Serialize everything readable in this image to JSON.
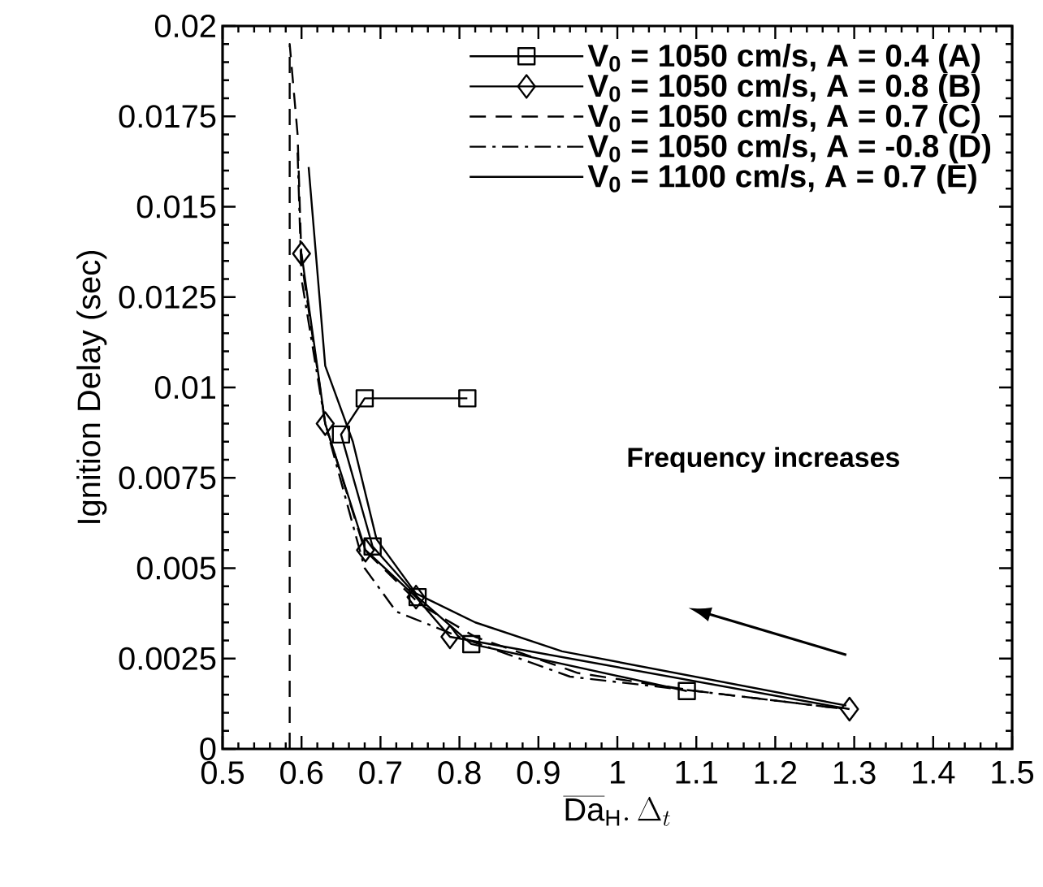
{
  "chart_data": {
    "type": "line",
    "xlabel": "\\overline{\\mathrm{Da}}_{\\mathrm{H}}.\\,\\Delta_{t}",
    "ylabel": "Ignition Delay (sec)",
    "annotations": [
      "Frequency increases"
    ],
    "xlim": [
      0.5,
      1.5
    ],
    "xticks": [
      0.5,
      0.6,
      0.7,
      0.8,
      0.9,
      1,
      1.1,
      1.2,
      1.3,
      1.4,
      1.5
    ],
    "ylim": [
      0,
      0.02
    ],
    "yticks": [
      0,
      0.0025,
      0.005,
      0.0075,
      0.01,
      0.0125,
      0.015,
      0.0175,
      0.02
    ],
    "grid": false,
    "legend": "top right",
    "series": [
      {
        "name": "V$_{0}$ = 1050 cm/s, A = 0.4 (A)",
        "color": "#000000",
        "marker": "square",
        "line_style": "solid",
        "x": [
          0.81,
          0.68,
          0.65,
          0.69,
          0.747,
          0.815,
          1.088
        ],
        "values": [
          0.0097,
          0.0097,
          0.0087,
          0.0056,
          0.0042,
          0.0029,
          0.0016
        ]
      },
      {
        "name": "V$_{0}$ = 1050 cm/s, A = 0.8 (B)",
        "color": "#000000",
        "marker": "diamond",
        "line_style": "solid",
        "x": [
          0.6,
          0.63,
          0.681,
          0.745,
          0.788,
          1.294
        ],
        "values": [
          0.0137,
          0.009,
          0.0055,
          0.0042,
          0.0031,
          0.0011
        ]
      },
      {
        "name": "V$_{0}$ = 1050 cm/s, A = 0.7 (C)",
        "color": "#000000",
        "marker": "none",
        "line_style": "dashed",
        "x": [
          0.585,
          0.585,
          0.595,
          0.6,
          0.63,
          0.68,
          0.75,
          0.82,
          0.95,
          1.1,
          1.29
        ],
        "values": [
          0,
          0.0195,
          0.017,
          0.0135,
          0.009,
          0.0055,
          0.004,
          0.0031,
          0.0021,
          0.0016,
          0.0011
        ]
      },
      {
        "name": "V$_{0}$ = 1050 cm/s, A = -0.8 (D)",
        "color": "#000000",
        "marker": "none",
        "line_style": "dashdot",
        "x": [
          0.595,
          0.6,
          0.63,
          0.68,
          0.72,
          0.8,
          0.94,
          1.1,
          1.29
        ],
        "values": [
          0.0165,
          0.013,
          0.009,
          0.005,
          0.0038,
          0.0031,
          0.002,
          0.0016,
          0.0011
        ]
      },
      {
        "name": "V$_{0}$ = 1100 cm/s, A = 0.7 (E)",
        "color": "#000000",
        "marker": "none",
        "line_style": "solid",
        "x": [
          0.609,
          0.63,
          0.665,
          0.695,
          0.745,
          0.82,
          0.93,
          1.29
        ],
        "values": [
          0.0161,
          0.0106,
          0.0085,
          0.0058,
          0.0043,
          0.0035,
          0.0027,
          0.0012
        ]
      }
    ]
  }
}
